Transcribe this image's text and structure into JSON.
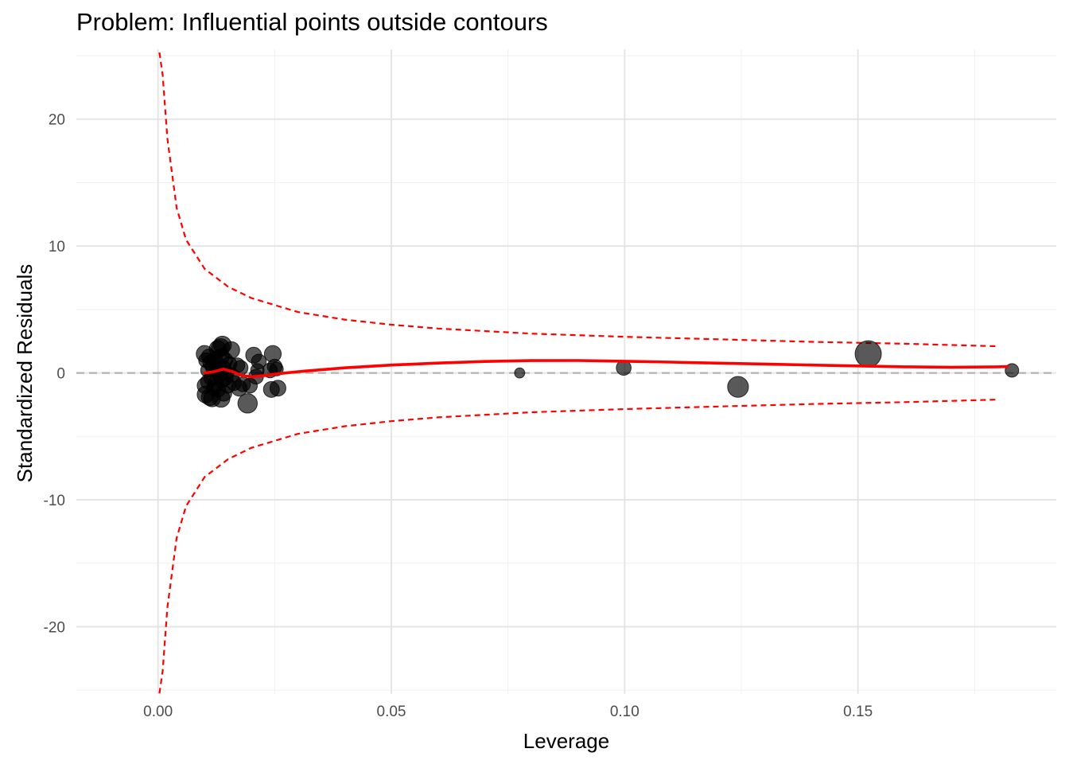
{
  "chart_data": {
    "type": "scatter",
    "title": "Problem: Influential points outside contours",
    "xlabel": "Leverage",
    "ylabel": "Standardized Residuals",
    "xlim": [
      -0.0175,
      0.1925
    ],
    "ylim": [
      -25.3,
      25.5
    ],
    "x_ticks": [
      0.0,
      0.05,
      0.1,
      0.15
    ],
    "x_tick_labels": [
      "0.00",
      "0.05",
      "0.10",
      "0.15"
    ],
    "x_minor_ticks": [
      0.025,
      0.075,
      0.125,
      0.175
    ],
    "y_ticks": [
      -20,
      -10,
      0,
      10,
      20
    ],
    "y_tick_labels": [
      "-20",
      "-10",
      "0",
      "10",
      "20"
    ],
    "y_minor_ticks": [
      -25,
      -15,
      -5,
      5,
      15,
      25
    ],
    "grid": true,
    "background": "minimal",
    "colors": {
      "points": "#000000",
      "smooth_line": "#ff0000",
      "contour": "#ff0000",
      "reference_line": "#b3b3b3",
      "grid_major": "#e5e5e5",
      "grid_minor": "#f2f2f2"
    },
    "reference_line": {
      "y": 0,
      "style": "dashed"
    },
    "points": [
      {
        "x": 0.01,
        "y": 1.5,
        "size": 0.3
      },
      {
        "x": 0.0103,
        "y": 1.0,
        "size": 0.2
      },
      {
        "x": 0.0101,
        "y": -1.0,
        "size": 0.25
      },
      {
        "x": 0.0102,
        "y": -1.7,
        "size": 0.3
      },
      {
        "x": 0.0106,
        "y": 0.2,
        "size": 0.15
      },
      {
        "x": 0.0107,
        "y": -0.7,
        "size": 0.2
      },
      {
        "x": 0.0109,
        "y": 1.3,
        "size": 0.2
      },
      {
        "x": 0.0111,
        "y": -1.9,
        "size": 0.3
      },
      {
        "x": 0.0112,
        "y": 0.8,
        "size": 0.2
      },
      {
        "x": 0.0114,
        "y": -0.4,
        "size": 0.2
      },
      {
        "x": 0.0116,
        "y": -2.0,
        "size": 0.3
      },
      {
        "x": 0.0118,
        "y": 0.5,
        "size": 0.25
      },
      {
        "x": 0.012,
        "y": -1.2,
        "size": 0.2
      },
      {
        "x": 0.0122,
        "y": 1.1,
        "size": 0.2
      },
      {
        "x": 0.0124,
        "y": -0.8,
        "size": 0.25
      },
      {
        "x": 0.0126,
        "y": 0.3,
        "size": 0.2
      },
      {
        "x": 0.0128,
        "y": 1.9,
        "size": 0.3
      },
      {
        "x": 0.0129,
        "y": -1.3,
        "size": 0.2
      },
      {
        "x": 0.0131,
        "y": 0.6,
        "size": 0.2
      },
      {
        "x": 0.0132,
        "y": -0.2,
        "size": 0.15
      },
      {
        "x": 0.0134,
        "y": 2.0,
        "size": 0.35
      },
      {
        "x": 0.0135,
        "y": -2.0,
        "size": 0.35
      },
      {
        "x": 0.0136,
        "y": 1.3,
        "size": 0.25
      },
      {
        "x": 0.0137,
        "y": -0.6,
        "size": 0.2
      },
      {
        "x": 0.0138,
        "y": 2.2,
        "size": 0.35
      },
      {
        "x": 0.014,
        "y": 0.4,
        "size": 0.2
      },
      {
        "x": 0.0141,
        "y": -1.6,
        "size": 0.25
      },
      {
        "x": 0.0143,
        "y": 1.0,
        "size": 0.25
      },
      {
        "x": 0.0145,
        "y": -0.4,
        "size": 0.2
      },
      {
        "x": 0.0147,
        "y": 0.0,
        "size": 0.2
      },
      {
        "x": 0.015,
        "y": -1.0,
        "size": 0.2
      },
      {
        "x": 0.0153,
        "y": 0.7,
        "size": 0.2
      },
      {
        "x": 0.0157,
        "y": 1.8,
        "size": 0.3
      },
      {
        "x": 0.016,
        "y": -0.2,
        "size": 0.15
      },
      {
        "x": 0.0163,
        "y": -0.8,
        "size": 0.2
      },
      {
        "x": 0.017,
        "y": 0.6,
        "size": 0.2
      },
      {
        "x": 0.0174,
        "y": -1.2,
        "size": 0.25
      },
      {
        "x": 0.0177,
        "y": 0.4,
        "size": 0.2
      },
      {
        "x": 0.0182,
        "y": -0.9,
        "size": 0.2
      },
      {
        "x": 0.0192,
        "y": -2.4,
        "size": 0.45
      },
      {
        "x": 0.0197,
        "y": -1.0,
        "size": 0.2
      },
      {
        "x": 0.0205,
        "y": 1.4,
        "size": 0.25
      },
      {
        "x": 0.021,
        "y": -0.3,
        "size": 0.2
      },
      {
        "x": 0.0213,
        "y": 0.2,
        "size": 0.15
      },
      {
        "x": 0.0216,
        "y": 0.9,
        "size": 0.2
      },
      {
        "x": 0.024,
        "y": 0.2,
        "size": 0.2
      },
      {
        "x": 0.0243,
        "y": -1.3,
        "size": 0.25
      },
      {
        "x": 0.0246,
        "y": 1.5,
        "size": 0.3
      },
      {
        "x": 0.025,
        "y": 0.5,
        "size": 0.2
      },
      {
        "x": 0.0254,
        "y": 0.3,
        "size": 0.15
      },
      {
        "x": 0.0257,
        "y": -1.2,
        "size": 0.25
      },
      {
        "x": 0.0775,
        "y": 0.0,
        "size": 0.05
      },
      {
        "x": 0.0998,
        "y": 0.4,
        "size": 0.2
      },
      {
        "x": 0.1243,
        "y": -1.1,
        "size": 0.55
      },
      {
        "x": 0.1522,
        "y": 1.5,
        "size": 1.0
      },
      {
        "x": 0.183,
        "y": 0.2,
        "size": 0.15
      }
    ],
    "smooth_line": [
      [
        0.01,
        0.0
      ],
      [
        0.012,
        0.1
      ],
      [
        0.014,
        0.3
      ],
      [
        0.016,
        0.1
      ],
      [
        0.018,
        -0.2
      ],
      [
        0.02,
        -0.3
      ],
      [
        0.023,
        -0.2
      ],
      [
        0.026,
        -0.05
      ],
      [
        0.03,
        0.1
      ],
      [
        0.04,
        0.4
      ],
      [
        0.05,
        0.62
      ],
      [
        0.06,
        0.78
      ],
      [
        0.07,
        0.9
      ],
      [
        0.08,
        0.97
      ],
      [
        0.09,
        0.98
      ],
      [
        0.1,
        0.92
      ],
      [
        0.11,
        0.85
      ],
      [
        0.12,
        0.77
      ],
      [
        0.13,
        0.7
      ],
      [
        0.14,
        0.62
      ],
      [
        0.15,
        0.55
      ],
      [
        0.16,
        0.48
      ],
      [
        0.17,
        0.45
      ],
      [
        0.18,
        0.48
      ],
      [
        0.182,
        0.5
      ]
    ],
    "contour_upper": [
      [
        0.0,
        26.0
      ],
      [
        0.001,
        23.5
      ],
      [
        0.002,
        18.5
      ],
      [
        0.004,
        13.0
      ],
      [
        0.006,
        10.5
      ],
      [
        0.01,
        8.2
      ],
      [
        0.015,
        6.8
      ],
      [
        0.02,
        5.9
      ],
      [
        0.03,
        4.8
      ],
      [
        0.04,
        4.2
      ],
      [
        0.05,
        3.8
      ],
      [
        0.06,
        3.5
      ],
      [
        0.08,
        3.1
      ],
      [
        0.1,
        2.85
      ],
      [
        0.12,
        2.65
      ],
      [
        0.14,
        2.45
      ],
      [
        0.16,
        2.3
      ],
      [
        0.18,
        2.1
      ]
    ],
    "contour_lower": [
      [
        0.0,
        -26.0
      ],
      [
        0.001,
        -23.5
      ],
      [
        0.002,
        -18.5
      ],
      [
        0.004,
        -13.0
      ],
      [
        0.006,
        -10.5
      ],
      [
        0.01,
        -8.2
      ],
      [
        0.015,
        -6.8
      ],
      [
        0.02,
        -5.9
      ],
      [
        0.03,
        -4.8
      ],
      [
        0.04,
        -4.2
      ],
      [
        0.05,
        -3.8
      ],
      [
        0.06,
        -3.5
      ],
      [
        0.08,
        -3.1
      ],
      [
        0.1,
        -2.85
      ],
      [
        0.12,
        -2.65
      ],
      [
        0.14,
        -2.45
      ],
      [
        0.16,
        -2.3
      ],
      [
        0.18,
        -2.1
      ]
    ]
  }
}
